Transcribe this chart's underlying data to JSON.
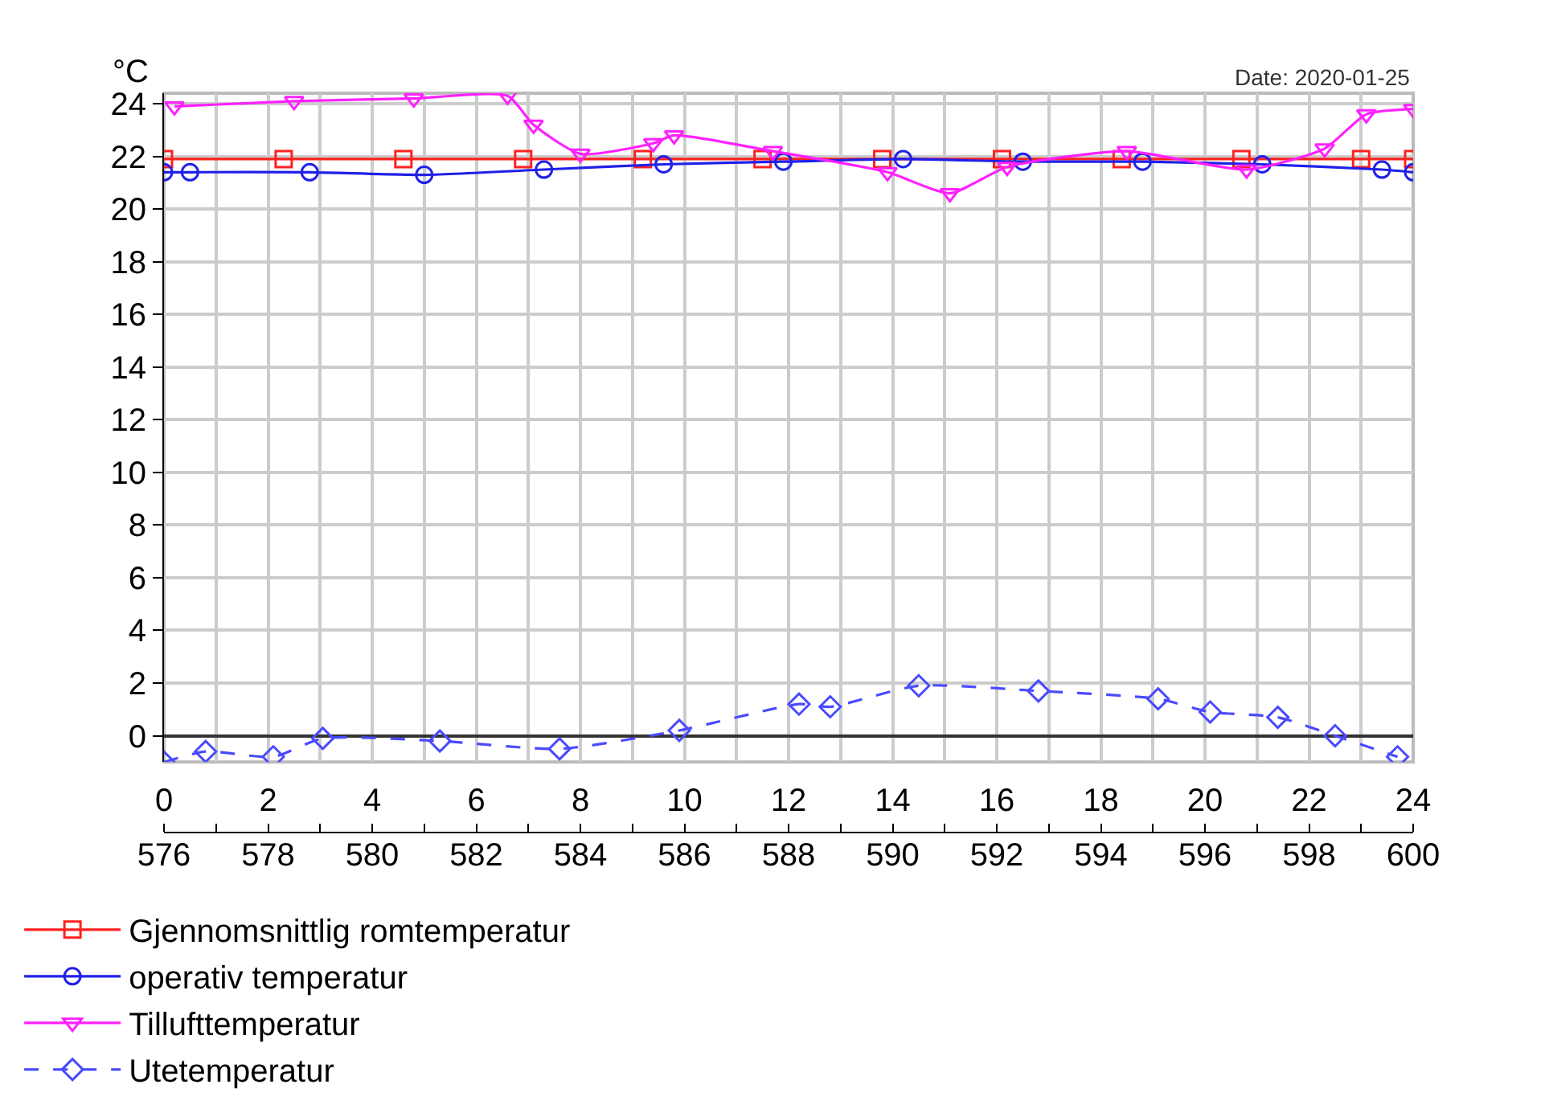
{
  "chart_data": {
    "type": "line",
    "ylabel": "°C",
    "annotations": [
      "Date: 2020-01-25"
    ],
    "xlim": [
      0,
      24
    ],
    "ylim": [
      -1,
      24.4
    ],
    "xticks": [
      0,
      {
        "value": 1,
        "label": null
      },
      2,
      {
        "value": 3,
        "label": null
      },
      4,
      {
        "value": 5,
        "label": null
      },
      6,
      {
        "value": 7,
        "label": null
      },
      8,
      {
        "value": 9,
        "label": null
      },
      10,
      {
        "value": 11,
        "label": null
      },
      12,
      {
        "value": 13,
        "label": null
      },
      14,
      {
        "value": 15,
        "label": null
      },
      16,
      {
        "value": 17,
        "label": null
      },
      18,
      {
        "value": 19,
        "label": null
      },
      20,
      {
        "value": 21,
        "label": null
      },
      22,
      {
        "value": 23,
        "label": null
      },
      24
    ],
    "x2lim": [
      576,
      600
    ],
    "x2ticks": [
      576,
      578,
      580,
      582,
      584,
      586,
      588,
      590,
      592,
      594,
      596,
      598,
      600
    ],
    "yticks": [
      0,
      2,
      4,
      6,
      8,
      10,
      12,
      14,
      16,
      18,
      20,
      22,
      24
    ],
    "grid": true,
    "legend": "bottom",
    "series": [
      {
        "name": "Gjennomsnittlig romtemperatur",
        "color": "#ff2020",
        "marker": "square",
        "line_style": "solid",
        "x": [
          0,
          2.3,
          4.6,
          6.9,
          9.2,
          11.5,
          13.8,
          16.1,
          18.4,
          20.7,
          23.0,
          24
        ],
        "values": [
          21.9,
          21.9,
          21.9,
          21.9,
          21.9,
          21.9,
          21.9,
          21.9,
          21.9,
          21.9,
          21.9,
          21.9
        ]
      },
      {
        "name": "operativ temperatur",
        "color": "#2020e8",
        "marker": "circle",
        "line_style": "solid",
        "x": [
          0,
          0.5,
          2.8,
          5.0,
          7.3,
          9.6,
          11.9,
          14.2,
          16.5,
          18.8,
          21.1,
          23.4,
          24
        ],
        "values": [
          21.4,
          21.4,
          21.4,
          21.3,
          21.5,
          21.7,
          21.8,
          21.9,
          21.8,
          21.8,
          21.7,
          21.5,
          21.4
        ]
      },
      {
        "name": "Tillufttemperatur",
        "color": "#ff20ff",
        "marker": "triangle",
        "line_style": "solid",
        "x": [
          0.2,
          2.5,
          4.8,
          6.6,
          7.1,
          8.0,
          9.4,
          9.8,
          11.7,
          13.9,
          15.1,
          16.2,
          18.5,
          20.8,
          22.3,
          23.1,
          24
        ],
        "values": [
          23.9,
          24.1,
          24.2,
          24.3,
          23.2,
          22.1,
          22.5,
          22.8,
          22.2,
          21.4,
          20.6,
          21.6,
          22.2,
          21.5,
          22.3,
          23.6,
          23.8
        ]
      },
      {
        "name": "Utetemperatur",
        "color": "#4a4aff",
        "marker": "diamond",
        "line_style": "dashed",
        "x": [
          0,
          0.8,
          2.1,
          3.05,
          5.3,
          7.6,
          9.9,
          12.2,
          12.8,
          14.5,
          16.8,
          19.1,
          20.1,
          21.4,
          22.5,
          23.7
        ],
        "values": [
          -1.0,
          -0.6,
          -0.8,
          -0.1,
          -0.2,
          -0.5,
          0.2,
          1.2,
          1.1,
          1.9,
          1.7,
          1.4,
          0.9,
          0.7,
          0.0,
          -0.8
        ]
      }
    ]
  }
}
